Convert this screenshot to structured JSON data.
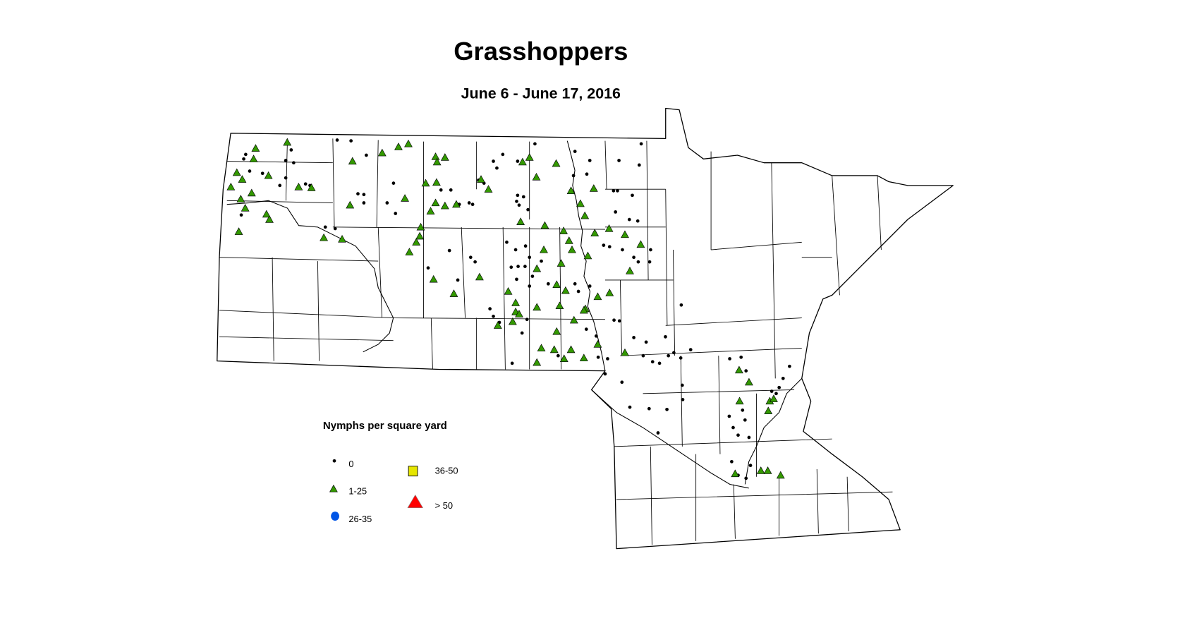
{
  "title": "Grasshoppers",
  "subtitle": "June 6 - June 17, 2016",
  "legend": {
    "title": "Nymphs per square yard",
    "classes": [
      {
        "key": "zero",
        "label": "0",
        "symbol": "dot",
        "color": "#000000"
      },
      {
        "key": "low",
        "label": "1-25",
        "symbol": "triangle",
        "color": "#339900"
      },
      {
        "key": "mid",
        "label": "26-35",
        "symbol": "circle",
        "color": "#0055e6"
      },
      {
        "key": "high",
        "label": "36-50",
        "symbol": "square",
        "color": "#e6e600"
      },
      {
        "key": "veryhigh",
        "label": "> 50",
        "symbol": "large-triangle",
        "color": "#ff0000"
      }
    ]
  },
  "chart_data": {
    "type": "scatter",
    "region": "North Dakota and Minnesota",
    "coordinate_units": "longitude/latitude (approximate)",
    "series": [
      {
        "name": "1-25",
        "points": [
          [
            -103.47,
            48.84
          ],
          [
            -103.51,
            48.7
          ],
          [
            -103.85,
            48.52
          ],
          [
            -103.74,
            48.43
          ],
          [
            -103.21,
            48.48
          ],
          [
            -103.97,
            48.33
          ],
          [
            -103.55,
            48.25
          ],
          [
            -103.77,
            48.17
          ],
          [
            -103.68,
            48.05
          ],
          [
            -103.25,
            47.97
          ],
          [
            -103.19,
            47.9
          ],
          [
            -103.81,
            47.74
          ],
          [
            -102.83,
            48.92
          ],
          [
            -102.6,
            48.33
          ],
          [
            -102.34,
            48.32
          ],
          [
            -102.09,
            47.66
          ],
          [
            -101.72,
            47.64
          ],
          [
            -101.51,
            48.67
          ],
          [
            -101.56,
            48.09
          ],
          [
            -100.91,
            48.78
          ],
          [
            -100.58,
            48.86
          ],
          [
            -100.38,
            48.9
          ],
          [
            -99.83,
            48.73
          ],
          [
            -99.64,
            48.72
          ],
          [
            -99.8,
            48.66
          ],
          [
            -100.03,
            48.38
          ],
          [
            -99.81,
            48.39
          ],
          [
            -100.45,
            48.18
          ],
          [
            -99.93,
            48.01
          ],
          [
            -100.13,
            47.8
          ],
          [
            -100.15,
            47.68
          ],
          [
            -100.22,
            47.6
          ],
          [
            -100.36,
            47.47
          ],
          [
            -99.64,
            48.08
          ],
          [
            -99.41,
            48.1
          ],
          [
            -99.83,
            48.12
          ],
          [
            -98.76,
            48.3
          ],
          [
            -98.91,
            48.43
          ],
          [
            -97.93,
            48.72
          ],
          [
            -98.07,
            48.66
          ],
          [
            -97.39,
            48.64
          ],
          [
            -97.79,
            48.46
          ],
          [
            -97.09,
            48.28
          ],
          [
            -96.63,
            48.31
          ],
          [
            -96.9,
            48.11
          ],
          [
            -96.81,
            47.95
          ],
          [
            -98.11,
            47.87
          ],
          [
            -97.62,
            47.82
          ],
          [
            -97.24,
            47.75
          ],
          [
            -97.13,
            47.62
          ],
          [
            -97.64,
            47.5
          ],
          [
            -97.29,
            47.32
          ],
          [
            -97.07,
            47.5
          ],
          [
            -96.75,
            47.42
          ],
          [
            -96.32,
            47.78
          ],
          [
            -96.61,
            47.72
          ],
          [
            -96.0,
            47.7
          ],
          [
            -95.68,
            47.57
          ],
          [
            -95.9,
            47.22
          ],
          [
            -97.78,
            47.25
          ],
          [
            -99.46,
            46.92
          ],
          [
            -98.94,
            47.14
          ],
          [
            -99.87,
            47.11
          ],
          [
            -98.36,
            46.95
          ],
          [
            -98.21,
            46.8
          ],
          [
            -98.21,
            46.68
          ],
          [
            -98.27,
            46.55
          ],
          [
            -98.14,
            46.65
          ],
          [
            -98.57,
            46.5
          ],
          [
            -97.78,
            46.74
          ],
          [
            -97.38,
            47.04
          ],
          [
            -97.2,
            46.96
          ],
          [
            -96.8,
            46.72
          ],
          [
            -96.55,
            46.88
          ],
          [
            -96.31,
            46.93
          ],
          [
            -97.38,
            46.42
          ],
          [
            -97.69,
            46.2
          ],
          [
            -97.43,
            46.18
          ],
          [
            -97.78,
            46.01
          ],
          [
            -97.09,
            46.18
          ],
          [
            -96.83,
            46.07
          ],
          [
            -97.23,
            46.06
          ],
          [
            -96.55,
            46.25
          ],
          [
            -96.0,
            46.14
          ],
          [
            -93.69,
            45.91
          ],
          [
            -93.49,
            45.75
          ],
          [
            -93.68,
            45.5
          ],
          [
            -93.1,
            45.37
          ],
          [
            -93.07,
            45.5
          ],
          [
            -92.99,
            45.53
          ],
          [
            -93.77,
            44.54
          ],
          [
            -93.25,
            44.58
          ],
          [
            -93.11,
            44.58
          ],
          [
            -92.85,
            44.52
          ],
          [
            -97.32,
            46.76
          ],
          [
            -97.03,
            46.57
          ],
          [
            -96.83,
            46.7
          ]
        ]
      },
      {
        "name": "0",
        "points": [
          [
            -103.67,
            48.76
          ],
          [
            -103.71,
            48.7
          ],
          [
            -103.59,
            48.54
          ],
          [
            -103.33,
            48.51
          ],
          [
            -102.98,
            48.35
          ],
          [
            -102.86,
            48.68
          ],
          [
            -102.75,
            48.82
          ],
          [
            -102.7,
            48.65
          ],
          [
            -102.86,
            48.45
          ],
          [
            -102.46,
            48.37
          ],
          [
            -102.37,
            48.35
          ],
          [
            -103.76,
            47.96
          ],
          [
            -102.06,
            47.8
          ],
          [
            -101.86,
            47.78
          ],
          [
            -101.82,
            48.95
          ],
          [
            -101.54,
            48.94
          ],
          [
            -101.23,
            48.75
          ],
          [
            -101.4,
            48.24
          ],
          [
            -101.28,
            48.23
          ],
          [
            -101.28,
            48.12
          ],
          [
            -100.81,
            48.12
          ],
          [
            -100.64,
            47.98
          ],
          [
            -100.68,
            48.38
          ],
          [
            -99.72,
            48.29
          ],
          [
            -99.52,
            48.29
          ],
          [
            -99.35,
            48.1
          ],
          [
            -99.15,
            48.12
          ],
          [
            -99.08,
            48.1
          ],
          [
            -98.96,
            48.42
          ],
          [
            -98.85,
            48.38
          ],
          [
            -98.66,
            48.67
          ],
          [
            -98.59,
            48.58
          ],
          [
            -98.47,
            48.76
          ],
          [
            -98.17,
            48.67
          ],
          [
            -97.82,
            48.9
          ],
          [
            -98.17,
            48.22
          ],
          [
            -98.05,
            48.2
          ],
          [
            -98.19,
            48.14
          ],
          [
            -98.14,
            48.09
          ],
          [
            -97.96,
            48.03
          ],
          [
            -97.01,
            48.8
          ],
          [
            -96.71,
            48.68
          ],
          [
            -96.77,
            48.5
          ],
          [
            -97.04,
            48.48
          ],
          [
            -96.12,
            48.68
          ],
          [
            -95.71,
            48.62
          ],
          [
            -95.67,
            48.9
          ],
          [
            -96.23,
            48.28
          ],
          [
            -96.15,
            48.28
          ],
          [
            -95.85,
            48.22
          ],
          [
            -96.19,
            48.0
          ],
          [
            -95.91,
            47.9
          ],
          [
            -95.74,
            47.88
          ],
          [
            -96.43,
            47.56
          ],
          [
            -96.31,
            47.54
          ],
          [
            -96.05,
            47.5
          ],
          [
            -95.82,
            47.4
          ],
          [
            -95.73,
            47.34
          ],
          [
            -95.5,
            47.34
          ],
          [
            -95.48,
            47.5
          ],
          [
            -98.39,
            47.6
          ],
          [
            -98.21,
            47.5
          ],
          [
            -98.01,
            47.55
          ],
          [
            -97.93,
            47.4
          ],
          [
            -97.69,
            47.35
          ],
          [
            -97.87,
            47.15
          ],
          [
            -97.55,
            47.05
          ],
          [
            -97.01,
            47.05
          ],
          [
            -96.94,
            46.95
          ],
          [
            -96.71,
            47.02
          ],
          [
            -98.3,
            47.27
          ],
          [
            -98.16,
            47.28
          ],
          [
            -98.02,
            47.28
          ],
          [
            -98.19,
            47.11
          ],
          [
            -97.93,
            47.02
          ],
          [
            -99.55,
            47.49
          ],
          [
            -99.98,
            47.26
          ],
          [
            -99.38,
            47.1
          ],
          [
            -99.12,
            47.4
          ],
          [
            -99.03,
            47.34
          ],
          [
            -98.73,
            46.72
          ],
          [
            -98.66,
            46.62
          ],
          [
            -98.54,
            46.54
          ],
          [
            -98.08,
            46.4
          ],
          [
            -97.98,
            46.58
          ],
          [
            -97.35,
            46.1
          ],
          [
            -96.78,
            46.45
          ],
          [
            -98.28,
            46.0
          ],
          [
            -96.58,
            46.36
          ],
          [
            -96.54,
            46.08
          ],
          [
            -96.35,
            46.06
          ],
          [
            -96.4,
            45.86
          ],
          [
            -96.06,
            45.75
          ],
          [
            -96.11,
            46.56
          ],
          [
            -96.22,
            46.57
          ],
          [
            -95.82,
            46.34
          ],
          [
            -95.57,
            46.28
          ],
          [
            -95.18,
            46.35
          ],
          [
            -95.63,
            46.1
          ],
          [
            -95.44,
            46.02
          ],
          [
            -95.3,
            46.0
          ],
          [
            -95.12,
            46.1
          ],
          [
            -95.01,
            46.14
          ],
          [
            -94.87,
            46.07
          ],
          [
            -94.67,
            46.18
          ],
          [
            -94.86,
            46.77
          ],
          [
            -94.84,
            45.71
          ],
          [
            -94.83,
            45.52
          ],
          [
            -95.9,
            45.42
          ],
          [
            -95.51,
            45.4
          ],
          [
            -95.15,
            45.39
          ],
          [
            -95.33,
            45.08
          ],
          [
            -93.88,
            46.06
          ],
          [
            -93.65,
            46.08
          ],
          [
            -93.55,
            45.9
          ],
          [
            -93.03,
            45.63
          ],
          [
            -92.94,
            45.6
          ],
          [
            -92.88,
            45.68
          ],
          [
            -92.8,
            45.8
          ],
          [
            -92.67,
            45.96
          ],
          [
            -93.89,
            45.3
          ],
          [
            -93.62,
            45.38
          ],
          [
            -93.57,
            45.25
          ],
          [
            -93.81,
            45.15
          ],
          [
            -93.71,
            45.05
          ],
          [
            -93.49,
            45.02
          ],
          [
            -93.84,
            44.7
          ],
          [
            -93.71,
            44.52
          ],
          [
            -93.55,
            44.48
          ],
          [
            -93.46,
            44.65
          ]
        ]
      },
      {
        "name": "26-35",
        "points": []
      },
      {
        "name": "36-50",
        "points": []
      },
      {
        "name": "> 50",
        "points": []
      }
    ]
  }
}
